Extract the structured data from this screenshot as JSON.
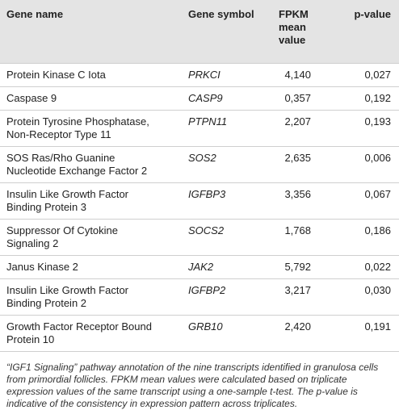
{
  "table": {
    "header": [
      "Gene name",
      "Gene symbol",
      "FPKM mean value",
      "p-value"
    ],
    "rows": [
      [
        "Protein Kinase C Iota",
        "PRKCI",
        "4,140",
        "0,027"
      ],
      [
        "Caspase 9",
        "CASP9",
        "0,357",
        "0,192"
      ],
      [
        "Protein Tyrosine Phosphatase, Non-Receptor Type 11",
        "PTPN11",
        "2,207",
        "0,193"
      ],
      [
        "SOS Ras/Rho Guanine Nucleotide Exchange Factor 2",
        "SOS2",
        "2,635",
        "0,006"
      ],
      [
        "Insulin Like Growth Factor Binding Protein 3",
        "IGFBP3",
        "3,356",
        "0,067"
      ],
      [
        "Suppressor Of Cytokine Signaling 2",
        "SOCS2",
        "1,768",
        "0,186"
      ],
      [
        "Janus Kinase 2",
        "JAK2",
        "5,792",
        "0,022"
      ],
      [
        "Insulin Like Growth Factor Binding Protein 2",
        "IGFBP2",
        "3,217",
        "0,030"
      ],
      [
        "Growth Factor Receptor Bound Protein 10",
        "GRB10",
        "2,420",
        "0,191"
      ]
    ],
    "caption": "“IGF1 Signaling” pathway annotation of the nine transcripts identified in granulosa cells from primordial follicles. FPKM mean values were calculated based on triplicate expression values of the same transcript using a one-sample t-test. The p-value is indicative of the consistency in expression pattern across triplicates."
  }
}
